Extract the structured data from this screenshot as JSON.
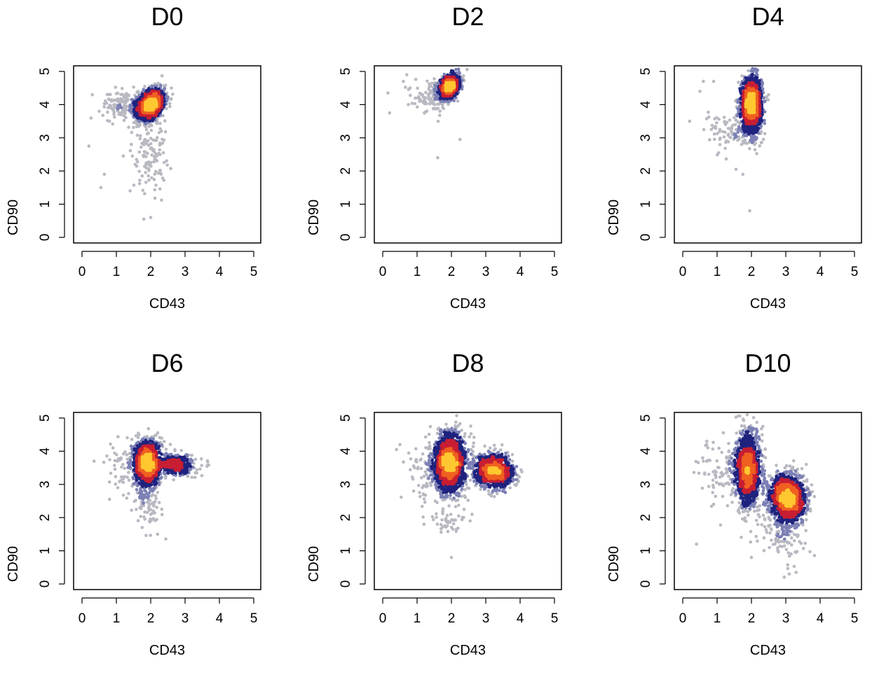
{
  "figure": {
    "type": "density-scatter-grid",
    "colors": {
      "lowest": "#b9b9c2",
      "low": "#7c80b5",
      "mid": "#1f237e",
      "high": "#c81e33",
      "higher": "#f06020",
      "highest": "#ffc830",
      "axis": "#000000"
    }
  },
  "chart_data": [
    {
      "type": "scatter",
      "title": "D0",
      "xlabel": "CD43",
      "ylabel": "CD90",
      "xlim": [
        0,
        5
      ],
      "ylim": [
        0,
        5
      ],
      "xticks": [
        "0",
        "1",
        "2",
        "3",
        "4",
        "5"
      ],
      "yticks": [
        "0",
        "1",
        "2",
        "3",
        "4",
        "5"
      ],
      "clusters": [
        {
          "cx": 2.0,
          "cy": 4.0,
          "sx": 0.2,
          "sy": 0.23,
          "rho": 0.3,
          "n": 1500
        },
        {
          "cx": 1.3,
          "cy": 4.0,
          "sx": 0.35,
          "sy": 0.22,
          "rho": 0.0,
          "n": 160
        },
        {
          "cx": 1.95,
          "cy": 2.6,
          "sx": 0.25,
          "sy": 0.6,
          "rho": 0.0,
          "n": 130
        }
      ],
      "outliers": [
        [
          0.2,
          2.75
        ],
        [
          0.55,
          1.5
        ],
        [
          0.65,
          1.9
        ],
        [
          1.8,
          0.55
        ],
        [
          2.0,
          0.6
        ],
        [
          0.3,
          4.3
        ],
        [
          0.5,
          3.8
        ],
        [
          1.4,
          1.4
        ],
        [
          0.8,
          3.5
        ]
      ]
    },
    {
      "type": "scatter",
      "title": "D2",
      "xlabel": "CD43",
      "ylabel": "CD90",
      "xlim": [
        0,
        5
      ],
      "ylim": [
        0,
        5
      ],
      "xticks": [
        "0",
        "1",
        "2",
        "3",
        "4",
        "5"
      ],
      "yticks": [
        "0",
        "1",
        "2",
        "3",
        "4",
        "5"
      ],
      "clusters": [
        {
          "cx": 1.95,
          "cy": 4.55,
          "sx": 0.14,
          "sy": 0.16,
          "rho": 0.3,
          "n": 1200
        },
        {
          "cx": 1.55,
          "cy": 4.25,
          "sx": 0.3,
          "sy": 0.22,
          "rho": 0.0,
          "n": 150
        }
      ],
      "outliers": [
        [
          0.15,
          4.35
        ],
        [
          0.2,
          3.75
        ],
        [
          1.6,
          2.4
        ],
        [
          2.25,
          2.95
        ],
        [
          0.7,
          4.9
        ],
        [
          0.6,
          4.7
        ]
      ]
    },
    {
      "type": "scatter",
      "title": "D4",
      "xlabel": "CD43",
      "ylabel": "CD90",
      "xlim": [
        0,
        5
      ],
      "ylim": [
        0,
        5
      ],
      "xticks": [
        "0",
        "1",
        "2",
        "3",
        "4",
        "5"
      ],
      "yticks": [
        "0",
        "1",
        "2",
        "3",
        "4",
        "5"
      ],
      "clusters": [
        {
          "cx": 2.0,
          "cy": 4.0,
          "sx": 0.15,
          "sy": 0.42,
          "rho": 0.0,
          "n": 1500
        },
        {
          "cx": 1.3,
          "cy": 3.2,
          "sx": 0.35,
          "sy": 0.3,
          "rho": 0.0,
          "n": 80
        }
      ],
      "outliers": [
        [
          0.2,
          3.5
        ],
        [
          0.6,
          4.7
        ],
        [
          1.55,
          2.05
        ],
        [
          1.75,
          1.9
        ],
        [
          1.95,
          0.8
        ],
        [
          0.5,
          4.4
        ],
        [
          2.5,
          4.3
        ],
        [
          0.9,
          4.7
        ]
      ]
    },
    {
      "type": "scatter",
      "title": "D6",
      "xlabel": "CD43",
      "ylabel": "CD90",
      "xlim": [
        0,
        5
      ],
      "ylim": [
        0,
        5
      ],
      "xticks": [
        "0",
        "1",
        "2",
        "3",
        "4",
        "5"
      ],
      "yticks": [
        "0",
        "1",
        "2",
        "3",
        "4",
        "5"
      ],
      "clusters": [
        {
          "cx": 1.9,
          "cy": 3.65,
          "sx": 0.18,
          "sy": 0.35,
          "rho": 0.0,
          "n": 1300
        },
        {
          "cx": 2.7,
          "cy": 3.6,
          "sx": 0.3,
          "sy": 0.16,
          "rho": 0.0,
          "n": 450
        },
        {
          "cx": 1.9,
          "cy": 2.5,
          "sx": 0.2,
          "sy": 0.4,
          "rho": 0.0,
          "n": 100
        },
        {
          "cx": 1.3,
          "cy": 3.4,
          "sx": 0.3,
          "sy": 0.35,
          "rho": 0.0,
          "n": 70
        }
      ],
      "outliers": [
        [
          0.35,
          3.7
        ],
        [
          0.8,
          2.55
        ],
        [
          1.75,
          1.7
        ],
        [
          2.2,
          1.5
        ],
        [
          3.3,
          3.35
        ],
        [
          0.9,
          4.1
        ]
      ]
    },
    {
      "type": "scatter",
      "title": "D8",
      "xlabel": "CD43",
      "ylabel": "CD90",
      "xlim": [
        0,
        5
      ],
      "ylim": [
        0,
        5
      ],
      "xticks": [
        "0",
        "1",
        "2",
        "3",
        "4",
        "5"
      ],
      "yticks": [
        "0",
        "1",
        "2",
        "3",
        "4",
        "5"
      ],
      "clusters": [
        {
          "cx": 1.95,
          "cy": 3.65,
          "sx": 0.22,
          "sy": 0.45,
          "rho": 0.0,
          "n": 1700
        },
        {
          "cx": 3.25,
          "cy": 3.4,
          "sx": 0.28,
          "sy": 0.25,
          "rho": -0.1,
          "n": 1100
        },
        {
          "cx": 1.3,
          "cy": 3.4,
          "sx": 0.3,
          "sy": 0.45,
          "rho": 0.0,
          "n": 80
        },
        {
          "cx": 1.9,
          "cy": 1.9,
          "sx": 0.25,
          "sy": 0.2,
          "rho": 0.0,
          "n": 40
        }
      ],
      "outliers": [
        [
          0.5,
          4.2
        ],
        [
          1.2,
          1.8
        ],
        [
          2.0,
          0.8
        ],
        [
          3.9,
          3.0
        ],
        [
          0.9,
          2.8
        ],
        [
          2.6,
          2.1
        ]
      ]
    },
    {
      "type": "scatter",
      "title": "D10",
      "xlabel": "CD43",
      "ylabel": "CD90",
      "xlim": [
        0,
        5
      ],
      "ylim": [
        0,
        5
      ],
      "xticks": [
        "0",
        "1",
        "2",
        "3",
        "4",
        "5"
      ],
      "yticks": [
        "0",
        "1",
        "2",
        "3",
        "4",
        "5"
      ],
      "clusters": [
        {
          "cx": 1.9,
          "cy": 3.45,
          "sx": 0.18,
          "sy": 0.55,
          "rho": 0.0,
          "n": 1300
        },
        {
          "cx": 3.05,
          "cy": 2.6,
          "sx": 0.26,
          "sy": 0.35,
          "rho": -0.1,
          "n": 1500
        },
        {
          "cx": 2.9,
          "cy": 1.6,
          "sx": 0.3,
          "sy": 0.5,
          "rho": 0.0,
          "n": 150
        },
        {
          "cx": 1.2,
          "cy": 3.3,
          "sx": 0.35,
          "sy": 0.5,
          "rho": 0.0,
          "n": 90
        }
      ],
      "outliers": [
        [
          0.4,
          1.2
        ],
        [
          0.6,
          3.7
        ],
        [
          0.7,
          4.3
        ],
        [
          3.3,
          0.35
        ],
        [
          3.1,
          0.3
        ],
        [
          2.0,
          0.8
        ],
        [
          0.9,
          2.4
        ]
      ]
    }
  ]
}
